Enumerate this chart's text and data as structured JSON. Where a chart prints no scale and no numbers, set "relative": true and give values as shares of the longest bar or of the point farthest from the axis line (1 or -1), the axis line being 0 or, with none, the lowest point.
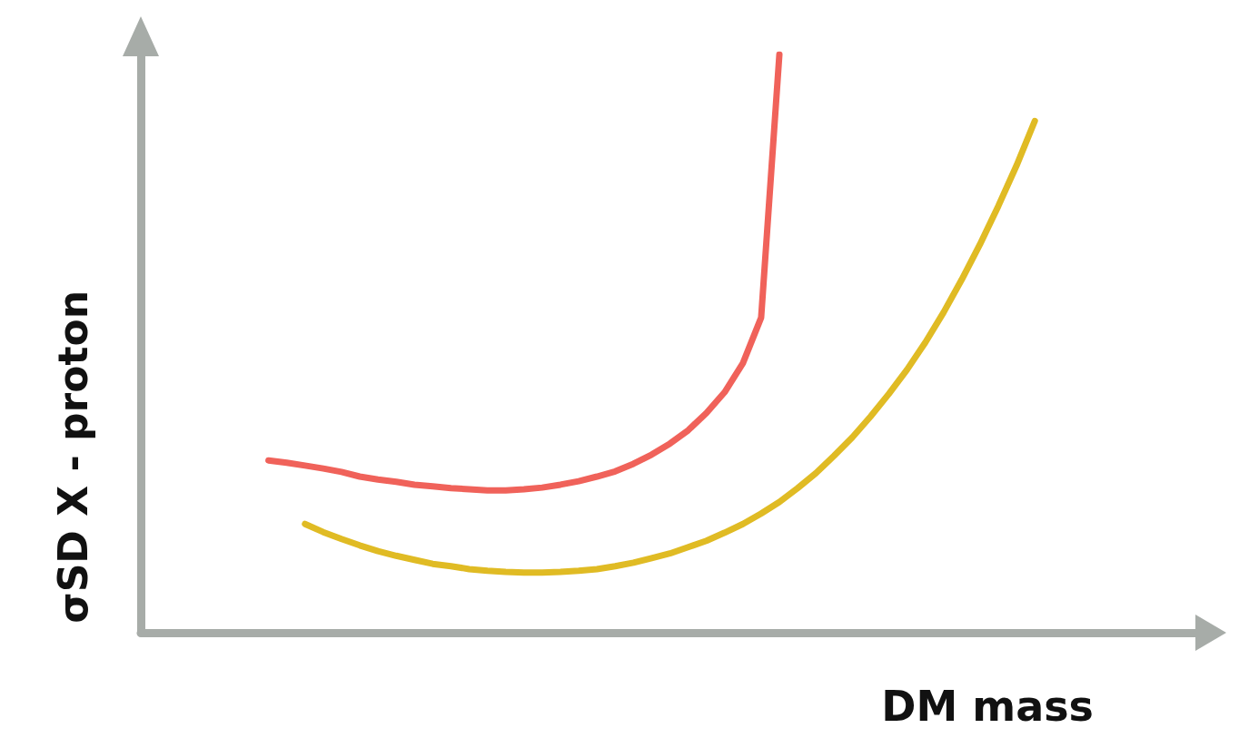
{
  "chart_data": {
    "type": "line",
    "relative": true,
    "xlabel": "DM mass",
    "ylabel": "σSD X - proton",
    "categories": [
      null,
      null,
      null,
      null,
      null,
      null,
      null,
      null,
      null,
      null,
      null,
      null,
      null,
      null,
      null,
      null,
      null,
      null,
      null,
      null,
      null,
      null,
      null,
      null,
      null,
      null,
      null,
      null,
      null,
      null,
      null,
      null,
      null,
      null,
      null,
      null,
      null,
      null,
      null,
      null,
      null,
      null,
      null,
      null,
      null,
      null,
      null,
      null,
      null,
      null,
      null,
      null,
      null,
      null,
      null,
      null,
      null,
      null,
      null
    ],
    "series": [
      {
        "color": "#f0625a",
        "values": [
          null,
          null,
          null,
          null,
          null,
          null,
          null,
          0.298,
          0.294,
          0.289,
          0.284,
          0.278,
          0.27,
          0.265,
          0.261,
          0.256,
          0.253,
          0.25,
          0.248,
          0.246,
          0.246,
          0.248,
          0.251,
          0.256,
          0.262,
          0.27,
          0.279,
          0.292,
          0.308,
          0.327,
          0.35,
          0.38,
          0.416,
          0.466,
          0.545,
          1.0,
          null,
          null,
          null,
          null,
          null,
          null,
          null,
          null,
          null,
          null,
          null,
          null,
          null,
          null,
          null,
          null,
          null,
          null,
          null,
          null,
          null,
          null,
          null
        ]
      },
      {
        "color": "#e0bb24",
        "values": [
          null,
          null,
          null,
          null,
          null,
          null,
          null,
          null,
          null,
          0.188,
          0.174,
          0.162,
          0.151,
          0.141,
          0.133,
          0.126,
          0.119,
          0.115,
          0.11,
          0.107,
          0.105,
          0.104,
          0.104,
          0.105,
          0.107,
          0.11,
          0.115,
          0.121,
          0.129,
          0.137,
          0.148,
          0.159,
          0.173,
          0.188,
          0.206,
          0.226,
          0.25,
          0.276,
          0.306,
          0.338,
          0.374,
          0.413,
          0.455,
          0.502,
          0.554,
          0.611,
          0.672,
          0.738,
          0.808,
          0.885,
          null,
          null,
          null,
          null,
          null,
          null,
          null,
          null,
          null
        ]
      }
    ]
  }
}
